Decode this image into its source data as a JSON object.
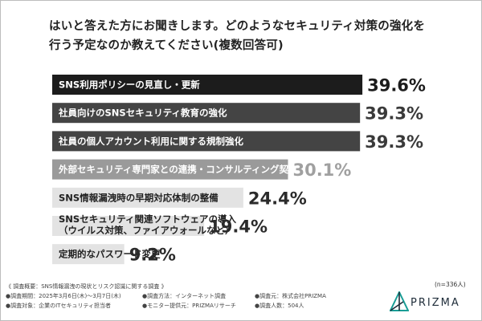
{
  "question": {
    "line1": "はいと答えた方にお聞きします。どのようなセキュリティ対策の強化を",
    "line2": "行う予定なのか教えてください(複数回答可)"
  },
  "chart_data": {
    "type": "bar",
    "orientation": "horizontal",
    "categories": [
      [
        "SNS利用ポリシーの見直し・更新"
      ],
      [
        "社員向けのSNSセキュリティ教育の強化"
      ],
      [
        "社員の個人アカウント利用に関する規制強化"
      ],
      [
        "外部セキュリティ専門家との連携・コンサルティング契約"
      ],
      [
        "SNS情報漏洩時の早期対応体制の整備"
      ],
      [
        "SNSセキュリティ関連ソフトウェアの導入",
        "（ウイルス対策、ファイアウォールなど）"
      ],
      [
        "定期的なパスワード変更"
      ]
    ],
    "values": [
      39.6,
      39.3,
      39.3,
      30.1,
      24.4,
      19.4,
      9.2
    ],
    "value_labels": [
      "39.6%",
      "39.3%",
      "39.3%",
      "30.1%",
      "24.4%",
      "19.4%",
      "9.2%"
    ],
    "bar_colors": [
      "#1c1c1c",
      "#444444",
      "#444444",
      "#9a9a9a",
      "#e3e3e3",
      "#e3e3e3",
      "#e3e3e3"
    ],
    "label_colors": [
      "#ffffff",
      "#ffffff",
      "#ffffff",
      "#ffffff",
      "#222222",
      "#222222",
      "#222222"
    ],
    "value_colors": [
      "#1c1c1c",
      "#3a3a3a",
      "#3a3a3a",
      "#a0a0a0",
      "#2b2b2b",
      "#2b2b2b",
      "#2b2b2b"
    ],
    "xlim": [
      0,
      40
    ],
    "grid": false,
    "legend": "none"
  },
  "sample_size": "(n=336人)",
  "footer": {
    "heading": "《 調査概要：SNS情報漏洩の現状とリスク認識に関する調査 》",
    "items": [
      "調査期間：2025年3月6日(木)～3月7日(木)",
      "調査方法：インターネット調査",
      "調査元：株式会社PRIZMA",
      "調査対象：企業のITセキュリティ担当者",
      "モニター提供元：PRIZMAリサーチ",
      "調査人数：504人"
    ],
    "bullet": "●"
  },
  "logo": {
    "text": "PRIZMA"
  },
  "colors": {
    "accent": "#1a9e96",
    "dark": "#1f2d3a"
  }
}
